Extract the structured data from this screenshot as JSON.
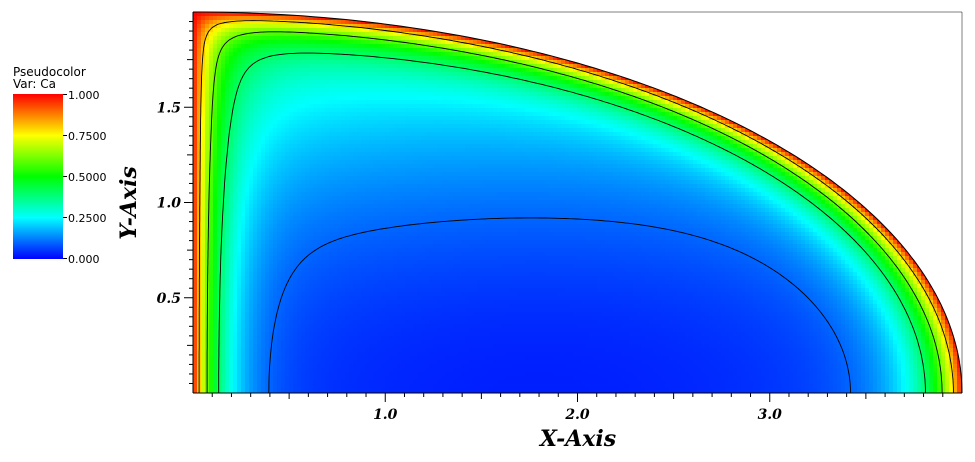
{
  "legend": {
    "title_line1": "Pseudocolor",
    "title_line2": "Var: Ca",
    "ticks": [
      "1.000",
      "0.7500",
      "0.5000",
      "0.2500",
      "0.000"
    ]
  },
  "chart_data": {
    "type": "heatmap",
    "title": "",
    "xlabel": "X-Axis",
    "ylabel": "Y-Axis",
    "xlim": [
      0,
      4
    ],
    "ylim": [
      0,
      2
    ],
    "x_ticks": [
      "1.0",
      "2.0",
      "3.0"
    ],
    "y_ticks": [
      "0.5",
      "1.0",
      "1.5"
    ],
    "variable": "Ca",
    "colorbar_range": [
      0,
      1
    ],
    "colormap": [
      "#0000ff",
      "#00ffff",
      "#00ff00",
      "#ffff00",
      "#ff0000"
    ],
    "domain_shape": "quarter-ellipse boundary, semi-axes 4.0 (x) by 2.0 (y)",
    "contour_lines": [
      0.1,
      0.4,
      0.6,
      0.8
    ]
  }
}
